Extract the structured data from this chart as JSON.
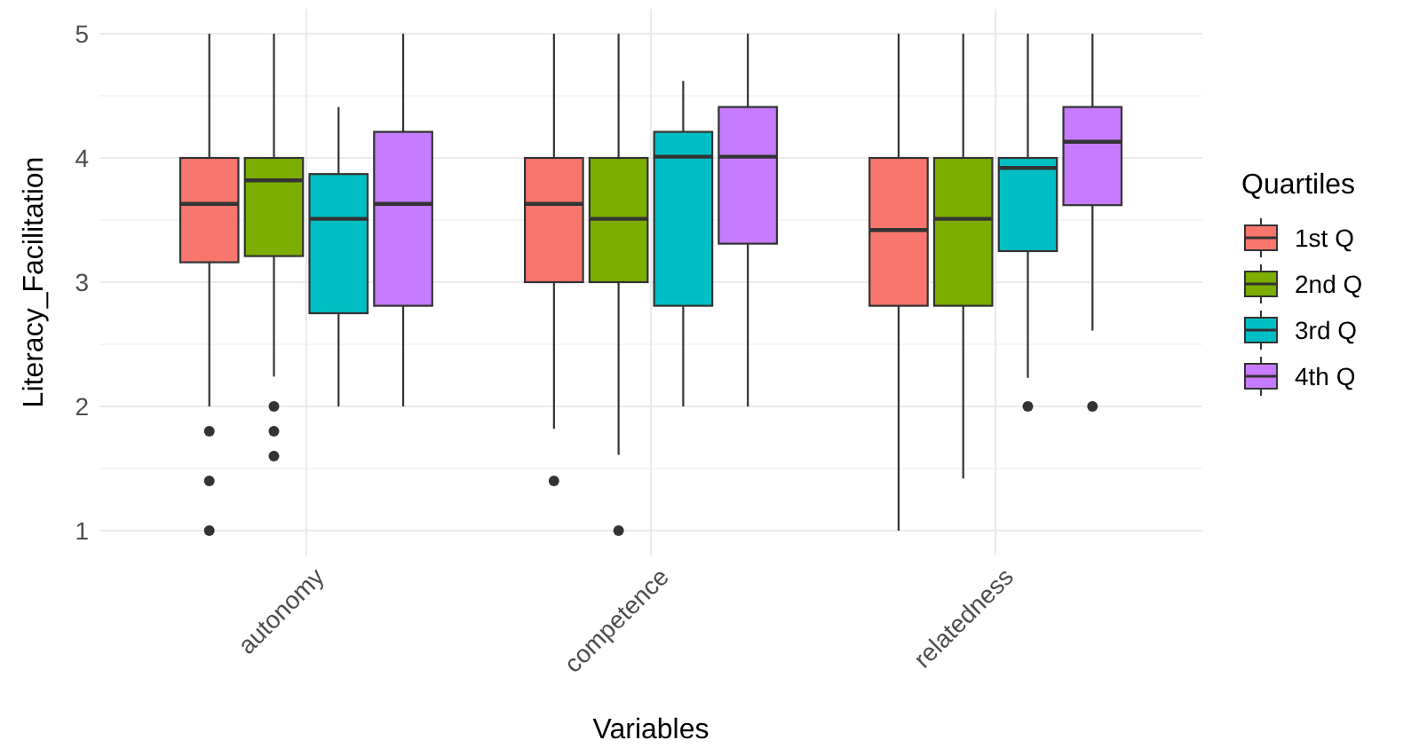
{
  "chart_data": {
    "type": "box",
    "categories": [
      "autonomy",
      "competence",
      "relatedness"
    ],
    "xlabel": "Variables",
    "ylabel": "Literacy_Facilitation",
    "legend_title": "Quartiles",
    "legend": "right",
    "grid": true,
    "ylim": [
      0.8,
      5.2
    ],
    "yticks": [
      1,
      {
        "value": 1.5,
        "label": null
      },
      2,
      {
        "value": 2.5,
        "label": null
      },
      3,
      {
        "value": 3.5,
        "label": null
      },
      4,
      {
        "value": 4.5,
        "label": null
      },
      5
    ],
    "series": [
      {
        "name": "1st Q",
        "color": "#f8766d",
        "boxes": [
          {
            "low": 2,
            "q1": 3.16,
            "median": 3.63,
            "q3": 4,
            "high": 5,
            "outliers": [
              1.8,
              1.4,
              1
            ]
          },
          {
            "low": 1.82,
            "q1": 3,
            "median": 3.63,
            "q3": 4,
            "high": 5,
            "outliers": [
              1.4
            ]
          },
          {
            "low": 1,
            "q1": 2.81,
            "median": 3.42,
            "q3": 4,
            "high": 5
          }
        ]
      },
      {
        "name": "2nd Q",
        "color": "#7cae00",
        "boxes": [
          {
            "low": 2.24,
            "q1": 3.21,
            "median": 3.82,
            "q3": 4,
            "high": 5,
            "outliers": [
              2,
              1.8,
              1.6
            ]
          },
          {
            "low": 1.61,
            "q1": 3,
            "median": 3.51,
            "q3": 4,
            "high": 5,
            "outliers": [
              1
            ]
          },
          {
            "low": 1.42,
            "q1": 2.81,
            "median": 3.51,
            "q3": 4,
            "high": 5
          }
        ]
      },
      {
        "name": "3rd Q",
        "color": "#00bfc4",
        "boxes": [
          {
            "low": 2,
            "q1": 2.75,
            "median": 3.51,
            "q3": 3.87,
            "high": 4.41
          },
          {
            "low": 2,
            "q1": 2.81,
            "median": 4.01,
            "q3": 4.21,
            "high": 4.62
          },
          {
            "low": 2.23,
            "q1": 3.25,
            "median": 3.92,
            "q3": 4,
            "high": 5,
            "outliers": [
              2
            ]
          }
        ]
      },
      {
        "name": "4th Q",
        "color": "#c77cff",
        "boxes": [
          {
            "low": 2,
            "q1": 2.81,
            "median": 3.63,
            "q3": 4.21,
            "high": 5
          },
          {
            "low": 2,
            "q1": 3.31,
            "median": 4.01,
            "q3": 4.41,
            "high": 5
          },
          {
            "low": 2.61,
            "q1": 3.62,
            "median": 4.13,
            "q3": 4.41,
            "high": 5,
            "outliers": [
              2
            ]
          }
        ]
      }
    ]
  }
}
